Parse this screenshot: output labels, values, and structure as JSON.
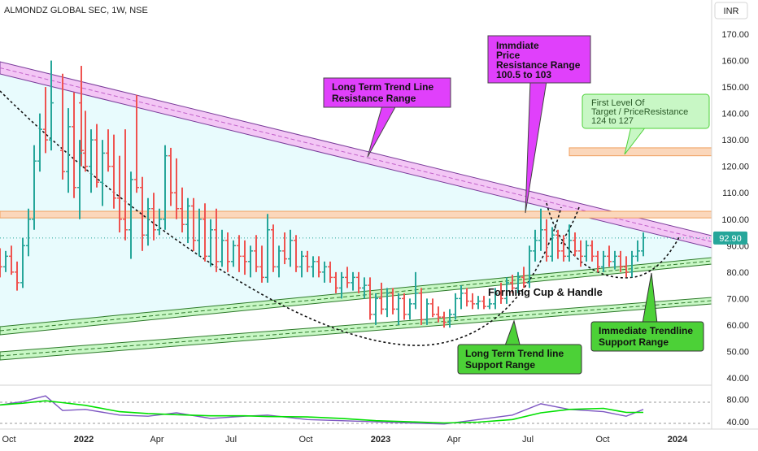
{
  "header": {
    "symbol_title": "ALMONDZ GLOBAL SEC, 1W, NSE",
    "currency": "INR"
  },
  "price_axis": {
    "ticks": [
      "170.00",
      "160.00",
      "150.00",
      "140.00",
      "130.00",
      "120.00",
      "110.00",
      "100.00",
      "90.00",
      "80.00",
      "70.00",
      "60.00",
      "50.00",
      "40.00"
    ],
    "last_price": "92.90"
  },
  "indicator_axis": {
    "ticks": [
      "80.00",
      "40.00"
    ]
  },
  "time_axis": {
    "labels": [
      "Oct",
      "2022",
      "Apr",
      "Jul",
      "Oct",
      "2023",
      "Apr",
      "Jul",
      "Oct",
      "2024"
    ]
  },
  "annotations": {
    "long_term_resistance": {
      "lines": [
        "Long Term Trend Line",
        "Resistance Range"
      ]
    },
    "immediate_resistance": {
      "lines": [
        "Immdiate",
        "Price",
        "Resistance Range",
        "100.5 to 103"
      ]
    },
    "first_target": {
      "lines": [
        "First Level Of",
        "Target / PriceResistance",
        "124 to 127"
      ]
    },
    "cup_handle": {
      "text": "Forming Cup & Handle"
    },
    "long_term_support": {
      "lines": [
        "Long Term Trend line",
        "Support Range"
      ]
    },
    "immediate_support": {
      "lines": [
        "Immediate Trendline",
        "Support Range"
      ]
    }
  },
  "colors": {
    "up": "#26a69a",
    "down": "#ef5350",
    "magenta": "#e040fb",
    "green_callout": "#4cd137",
    "light_green": "#c8f7c5",
    "orange_band": "#f8b07a",
    "indicator_line": "#7e57c2",
    "indicator_ma": "#00e000"
  },
  "chart_data": {
    "type": "ohlc",
    "timeframe": "1W",
    "ylim": [
      40,
      175
    ],
    "x_range": [
      "2021-09-20",
      "2024-02-12"
    ],
    "candles": [
      [
        "2021-09-20",
        85,
        89,
        78,
        82
      ],
      [
        "2021-09-27",
        82,
        88,
        80,
        86
      ],
      [
        "2021-10-04",
        86,
        90,
        79,
        80
      ],
      [
        "2021-10-11",
        80,
        84,
        73,
        76
      ],
      [
        "2021-10-18",
        76,
        93,
        74,
        90
      ],
      [
        "2021-10-25",
        90,
        104,
        86,
        100
      ],
      [
        "2021-11-01",
        100,
        128,
        96,
        122
      ],
      [
        "2021-11-08",
        122,
        140,
        118,
        134
      ],
      [
        "2021-11-15",
        134,
        150,
        125,
        130
      ],
      [
        "2021-11-22",
        130,
        160,
        126,
        144
      ],
      [
        "2021-12-29",
        144,
        158,
        120,
        126
      ],
      [
        "2021-12-06",
        126,
        155,
        115,
        118
      ],
      [
        "2021-12-13",
        118,
        142,
        110,
        135
      ],
      [
        "2021-12-20",
        135,
        148,
        108,
        112
      ],
      [
        "2021-12-27",
        112,
        130,
        100,
        125
      ],
      [
        "2022-01-03",
        125,
        141,
        118,
        120
      ],
      [
        "2022-01-10",
        120,
        134,
        110,
        130
      ],
      [
        "2022-01-17",
        130,
        136,
        112,
        114
      ],
      [
        "2022-01-24",
        114,
        130,
        105,
        125
      ],
      [
        "2022-01-31",
        125,
        134,
        118,
        120
      ],
      [
        "2022-02-07",
        120,
        132,
        104,
        108
      ],
      [
        "2022-02-14",
        108,
        124,
        95,
        100
      ],
      [
        "2022-02-21",
        100,
        134,
        92,
        96
      ],
      [
        "2022-02-28",
        96,
        118,
        85,
        115
      ],
      [
        "2022-03-07",
        115,
        147,
        110,
        112
      ],
      [
        "2022-03-14",
        112,
        116,
        88,
        94
      ],
      [
        "2022-03-21",
        94,
        108,
        90,
        104
      ],
      [
        "2022-03-28",
        104,
        110,
        92,
        96
      ],
      [
        "2022-04-04",
        96,
        104,
        94,
        100
      ],
      [
        "2022-04-11",
        100,
        128,
        96,
        124
      ],
      [
        "2022-04-18",
        124,
        127,
        105,
        110
      ],
      [
        "2022-04-25",
        110,
        123,
        100,
        104
      ],
      [
        "2022-05-02",
        104,
        112,
        95,
        98
      ],
      [
        "2022-05-09",
        98,
        108,
        91,
        105
      ],
      [
        "2022-05-16",
        105,
        108,
        88,
        92
      ],
      [
        "2022-05-23",
        92,
        104,
        86,
        100
      ],
      [
        "2022-05-30",
        100,
        106,
        84,
        86
      ],
      [
        "2022-06-06",
        86,
        100,
        82,
        96
      ],
      [
        "2022-06-13",
        96,
        104,
        80,
        84
      ],
      [
        "2022-06-20",
        84,
        96,
        82,
        92
      ],
      [
        "2022-06-27",
        92,
        95,
        80,
        84
      ],
      [
        "2022-07-04",
        84,
        92,
        82,
        90
      ],
      [
        "2022-07-11",
        90,
        94,
        80,
        86
      ],
      [
        "2022-07-18",
        86,
        92,
        79,
        84
      ],
      [
        "2022-07-25",
        84,
        90,
        78,
        88
      ],
      [
        "2022-08-01",
        88,
        94,
        80,
        82
      ],
      [
        "2022-08-08",
        82,
        90,
        76,
        78
      ],
      [
        "2022-08-15",
        78,
        102,
        76,
        96
      ],
      [
        "2022-08-22",
        96,
        98,
        80,
        82
      ],
      [
        "2022-08-29",
        82,
        90,
        78,
        88
      ],
      [
        "2022-09-05",
        88,
        95,
        83,
        85
      ],
      [
        "2022-09-12",
        85,
        96,
        82,
        92
      ],
      [
        "2022-09-19",
        92,
        94,
        80,
        82
      ],
      [
        "2022-09-26",
        82,
        88,
        78,
        86
      ],
      [
        "2022-10-03",
        86,
        88,
        80,
        82
      ],
      [
        "2022-10-10",
        82,
        86,
        78,
        84
      ],
      [
        "2022-10-17",
        84,
        86,
        78,
        80
      ],
      [
        "2022-10-24",
        80,
        84,
        76,
        82
      ],
      [
        "2022-10-31",
        82,
        84,
        76,
        78
      ],
      [
        "2022-11-07",
        78,
        80,
        72,
        74
      ],
      [
        "2022-11-14",
        74,
        80,
        70,
        78
      ],
      [
        "2022-11-21",
        78,
        82,
        74,
        76
      ],
      [
        "2022-11-28",
        76,
        80,
        73,
        78
      ],
      [
        "2022-12-05",
        78,
        80,
        72,
        74
      ],
      [
        "2022-12-12",
        74,
        78,
        70,
        75
      ],
      [
        "2022-12-19",
        75,
        78,
        62,
        64
      ],
      [
        "2022-12-26",
        64,
        72,
        60,
        70
      ],
      [
        "2023-01-02",
        70,
        76,
        64,
        66
      ],
      [
        "2023-01-09",
        66,
        74,
        63,
        72
      ],
      [
        "2023-01-16",
        72,
        74,
        64,
        66
      ],
      [
        "2023-01-23",
        66,
        72,
        60,
        70
      ],
      [
        "2023-01-30",
        70,
        72,
        62,
        64
      ],
      [
        "2023-02-06",
        64,
        70,
        62,
        68
      ],
      [
        "2023-02-13",
        68,
        80,
        66,
        72
      ],
      [
        "2023-02-20",
        72,
        74,
        60,
        62
      ],
      [
        "2023-02-27",
        62,
        70,
        60,
        68
      ],
      [
        "2023-03-06",
        68,
        70,
        63,
        64
      ],
      [
        "2023-03-13",
        64,
        67,
        61,
        63
      ],
      [
        "2023-03-20",
        63,
        65,
        59,
        61
      ],
      [
        "2023-03-27",
        61,
        66,
        59,
        64
      ],
      [
        "2023-04-03",
        64,
        72,
        62,
        70
      ],
      [
        "2023-04-10",
        70,
        75,
        66,
        72
      ],
      [
        "2023-04-17",
        72,
        74,
        67,
        69
      ],
      [
        "2023-04-24",
        69,
        72,
        66,
        68
      ],
      [
        "2023-05-01",
        68,
        71,
        66,
        69
      ],
      [
        "2023-05-08",
        69,
        71,
        66,
        67
      ],
      [
        "2023-05-15",
        67,
        70,
        66,
        68
      ],
      [
        "2023-05-22",
        68,
        74,
        66,
        72
      ],
      [
        "2023-05-29",
        72,
        76,
        68,
        70
      ],
      [
        "2023-06-05",
        70,
        78,
        68,
        76
      ],
      [
        "2023-06-12",
        76,
        79,
        72,
        74
      ],
      [
        "2023-06-19",
        74,
        80,
        72,
        78
      ],
      [
        "2023-06-26",
        78,
        82,
        74,
        76
      ],
      [
        "2023-07-03",
        76,
        90,
        74,
        88
      ],
      [
        "2023-07-10",
        88,
        96,
        84,
        92
      ],
      [
        "2023-07-17",
        92,
        104,
        88,
        96
      ],
      [
        "2023-07-24",
        96,
        100,
        84,
        86
      ],
      [
        "2023-07-31",
        86,
        97,
        84,
        94
      ],
      [
        "2023-08-07",
        94,
        96,
        85,
        88
      ],
      [
        "2023-08-14",
        88,
        94,
        84,
        86
      ],
      [
        "2023-08-21",
        86,
        98,
        84,
        92
      ],
      [
        "2023-08-28",
        92,
        95,
        86,
        88
      ],
      [
        "2023-09-04",
        88,
        92,
        82,
        86
      ],
      [
        "2023-09-11",
        86,
        92,
        84,
        90
      ],
      [
        "2023-09-18",
        90,
        92,
        84,
        86
      ],
      [
        "2023-09-25",
        86,
        88,
        80,
        82
      ],
      [
        "2023-10-02",
        82,
        88,
        80,
        86
      ],
      [
        "2023-10-09",
        86,
        90,
        82,
        84
      ],
      [
        "2023-10-16",
        84,
        88,
        81,
        86
      ],
      [
        "2023-10-23",
        86,
        88,
        80,
        82
      ],
      [
        "2023-10-30",
        82,
        86,
        78,
        80
      ],
      [
        "2023-11-06",
        80,
        88,
        78,
        86
      ],
      [
        "2023-11-13",
        86,
        92,
        84,
        88
      ],
      [
        "2023-11-20",
        88,
        95,
        86,
        93
      ]
    ],
    "levels": {
      "immediate_resistance_zone": [
        100.5,
        103
      ],
      "first_target_zone": [
        124,
        127
      ],
      "last_price": 92.9
    },
    "indicator": {
      "ylim": [
        30,
        95
      ],
      "ticks": [
        80,
        40
      ],
      "points": [
        [
          "2021-09-20",
          70
        ],
        [
          "2021-10-18",
          76
        ],
        [
          "2021-11-15",
          86
        ],
        [
          "2021-12-06",
          60
        ],
        [
          "2022-01-03",
          62
        ],
        [
          "2022-02-14",
          52
        ],
        [
          "2022-03-21",
          50
        ],
        [
          "2022-04-25",
          56
        ],
        [
          "2022-06-06",
          46
        ],
        [
          "2022-07-18",
          50
        ],
        [
          "2022-08-15",
          52
        ],
        [
          "2022-10-03",
          44
        ],
        [
          "2022-11-14",
          42
        ],
        [
          "2022-12-26",
          40
        ],
        [
          "2023-02-06",
          38
        ],
        [
          "2023-03-20",
          36
        ],
        [
          "2023-05-01",
          44
        ],
        [
          "2023-06-12",
          52
        ],
        [
          "2023-07-17",
          72
        ],
        [
          "2023-08-21",
          62
        ],
        [
          "2023-10-02",
          58
        ],
        [
          "2023-10-30",
          50
        ],
        [
          "2023-11-20",
          62
        ]
      ]
    }
  }
}
